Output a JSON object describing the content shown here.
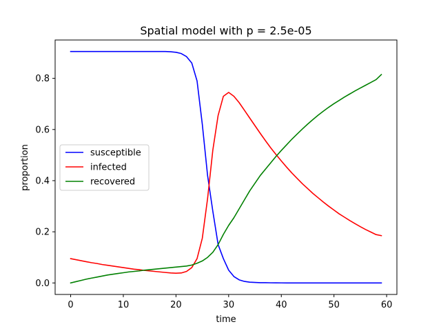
{
  "chart_data": {
    "type": "line",
    "title": "Spatial model with p = 2.5e-05",
    "xlabel": "time",
    "ylabel": "proportion",
    "xlim": [
      -2.95,
      61.95
    ],
    "ylim": [
      -0.045,
      0.95
    ],
    "xticks": [
      0,
      10,
      20,
      30,
      40,
      50,
      60
    ],
    "yticks": [
      0.0,
      0.2,
      0.4,
      0.6,
      0.8
    ],
    "grid": false,
    "legend_position": "center-left",
    "x": [
      0,
      1,
      2,
      3,
      4,
      5,
      6,
      7,
      8,
      9,
      10,
      11,
      12,
      13,
      14,
      15,
      16,
      17,
      18,
      19,
      20,
      21,
      22,
      23,
      24,
      25,
      26,
      27,
      28,
      29,
      30,
      31,
      32,
      33,
      34,
      35,
      36,
      37,
      38,
      39,
      40,
      41,
      42,
      43,
      44,
      45,
      46,
      47,
      48,
      49,
      50,
      51,
      52,
      53,
      54,
      55,
      56,
      57,
      58,
      59
    ],
    "series": [
      {
        "name": "susceptible",
        "color": "#0000ff",
        "values": [
          0.905,
          0.905,
          0.905,
          0.905,
          0.905,
          0.905,
          0.905,
          0.905,
          0.905,
          0.905,
          0.905,
          0.905,
          0.905,
          0.905,
          0.905,
          0.905,
          0.905,
          0.905,
          0.905,
          0.904,
          0.902,
          0.897,
          0.885,
          0.86,
          0.79,
          0.62,
          0.42,
          0.28,
          0.15,
          0.095,
          0.05,
          0.025,
          0.012,
          0.006,
          0.003,
          0.002,
          0.001,
          0.001,
          0.0005,
          0.0003,
          0.0002,
          0.0001,
          0.0001,
          0.0,
          0.0,
          0.0,
          0.0,
          0.0,
          0.0,
          0.0,
          0.0,
          0.0,
          0.0,
          0.0,
          0.0,
          0.0,
          0.0,
          0.0,
          0.0,
          0.0
        ]
      },
      {
        "name": "infected",
        "color": "#ff0000",
        "values": [
          0.095,
          0.091,
          0.087,
          0.083,
          0.079,
          0.076,
          0.072,
          0.069,
          0.066,
          0.063,
          0.06,
          0.057,
          0.054,
          0.052,
          0.049,
          0.047,
          0.045,
          0.043,
          0.041,
          0.039,
          0.038,
          0.039,
          0.045,
          0.06,
          0.095,
          0.175,
          0.33,
          0.52,
          0.655,
          0.73,
          0.745,
          0.73,
          0.705,
          0.675,
          0.645,
          0.615,
          0.585,
          0.556,
          0.528,
          0.502,
          0.477,
          0.453,
          0.43,
          0.409,
          0.388,
          0.369,
          0.35,
          0.333,
          0.316,
          0.3,
          0.285,
          0.27,
          0.257,
          0.244,
          0.232,
          0.22,
          0.209,
          0.199,
          0.189,
          0.185
        ]
      },
      {
        "name": "recovered",
        "color": "#008000",
        "values": [
          0.0,
          0.005,
          0.01,
          0.015,
          0.019,
          0.023,
          0.027,
          0.031,
          0.034,
          0.037,
          0.04,
          0.043,
          0.045,
          0.047,
          0.05,
          0.052,
          0.054,
          0.056,
          0.058,
          0.06,
          0.062,
          0.064,
          0.066,
          0.07,
          0.077,
          0.086,
          0.1,
          0.12,
          0.15,
          0.19,
          0.225,
          0.255,
          0.29,
          0.325,
          0.36,
          0.39,
          0.42,
          0.445,
          0.47,
          0.495,
          0.518,
          0.54,
          0.562,
          0.582,
          0.602,
          0.621,
          0.639,
          0.656,
          0.672,
          0.687,
          0.701,
          0.714,
          0.727,
          0.739,
          0.751,
          0.762,
          0.773,
          0.784,
          0.795,
          0.815
        ]
      }
    ]
  }
}
